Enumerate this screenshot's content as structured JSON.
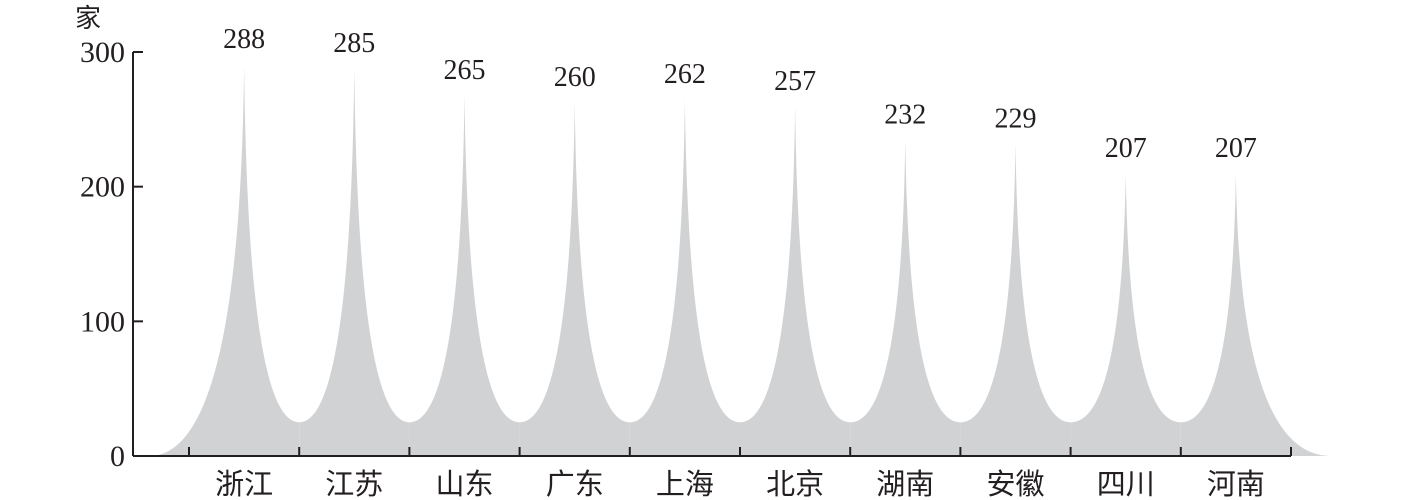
{
  "chart_data": {
    "type": "area",
    "title": "",
    "xlabel": "",
    "ylabel": "家",
    "ylim": [
      0,
      300
    ],
    "yticks": [
      0,
      100,
      200,
      300
    ],
    "grid": false,
    "categories": [
      "浙江",
      "江苏",
      "山东",
      "广东",
      "上海",
      "北京",
      "湖南",
      "安徽",
      "四川",
      "河南"
    ],
    "values": [
      288,
      285,
      265,
      260,
      262,
      257,
      232,
      229,
      207,
      207
    ],
    "data_labels": [
      "288",
      "285",
      "265",
      "260",
      "262",
      "257",
      "232",
      "229",
      "207",
      "207"
    ],
    "fill_color": "#d1d2d4",
    "axis_color": "#231f20"
  }
}
